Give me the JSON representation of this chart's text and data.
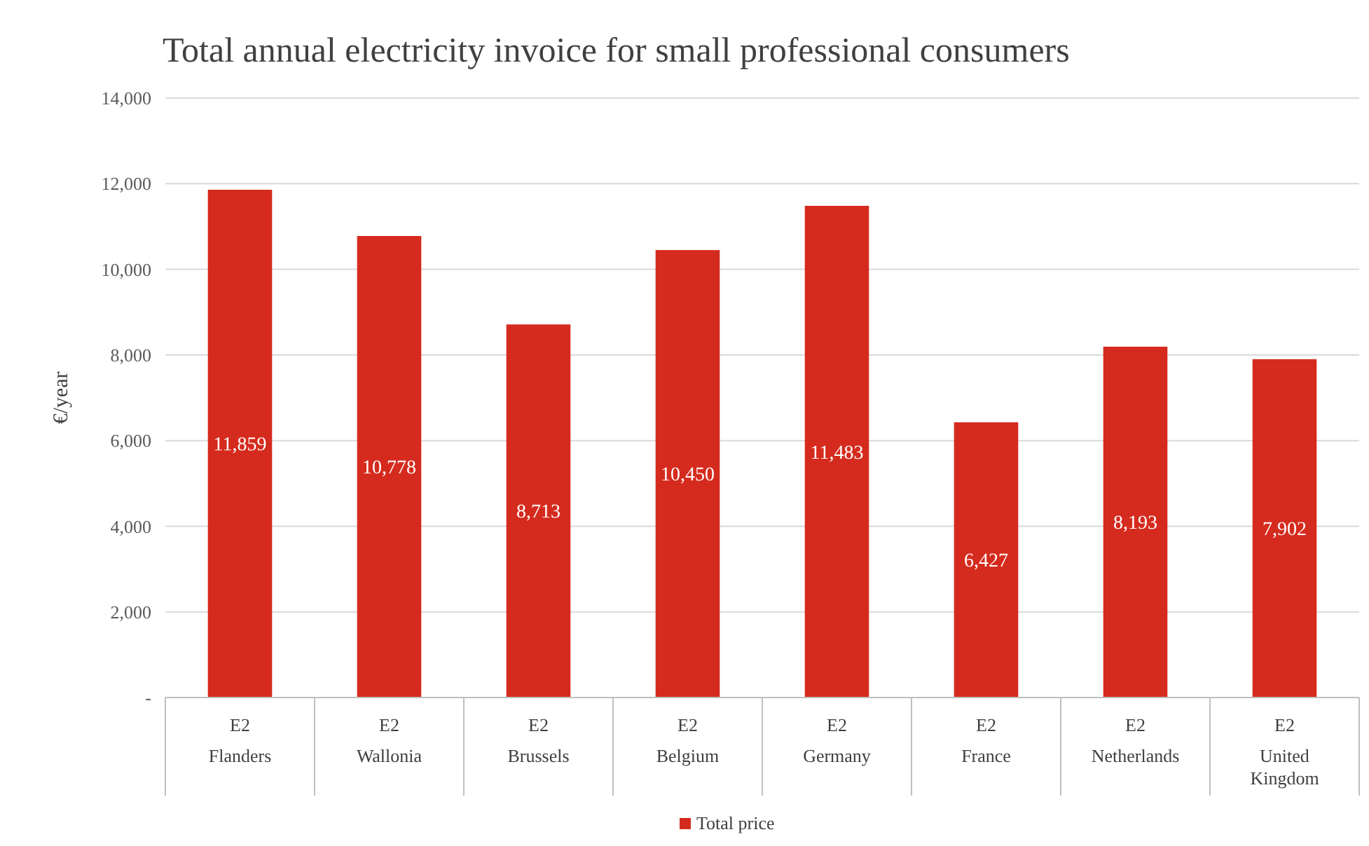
{
  "chart_data": {
    "type": "bar",
    "title": "Total annual electricity invoice for small professional consumers",
    "ylabel": "€/year",
    "categories": [
      "E2\nFlanders",
      "E2\nWallonia",
      "E2\nBrussels",
      "E2\nBelgium",
      "E2\nGermany",
      "E2\nFrance",
      "E2\nNetherlands",
      "E2\nUnited Kingdom"
    ],
    "series": [
      {
        "name": "Total price",
        "color": "#d52b1e",
        "values": [
          11859,
          10778,
          8713,
          10450,
          11483,
          6427,
          8193,
          7902
        ],
        "value_labels": [
          "11,859",
          "10,778",
          "8,713",
          "10,450",
          "11,483",
          "6,427",
          "8,193",
          "7,902"
        ]
      }
    ],
    "ylim": [
      0,
      14000
    ],
    "yticks": [
      {
        "value": 0,
        "label": "-"
      },
      {
        "value": 2000,
        "label": "2,000"
      },
      {
        "value": 4000,
        "label": "4,000"
      },
      {
        "value": 6000,
        "label": "6,000"
      },
      {
        "value": 8000,
        "label": "8,000"
      },
      {
        "value": 10000,
        "label": "10,000"
      },
      {
        "value": 12000,
        "label": "12,000"
      },
      {
        "value": 14000,
        "label": "14,000"
      }
    ],
    "grid": "y",
    "legend": "bottom"
  }
}
